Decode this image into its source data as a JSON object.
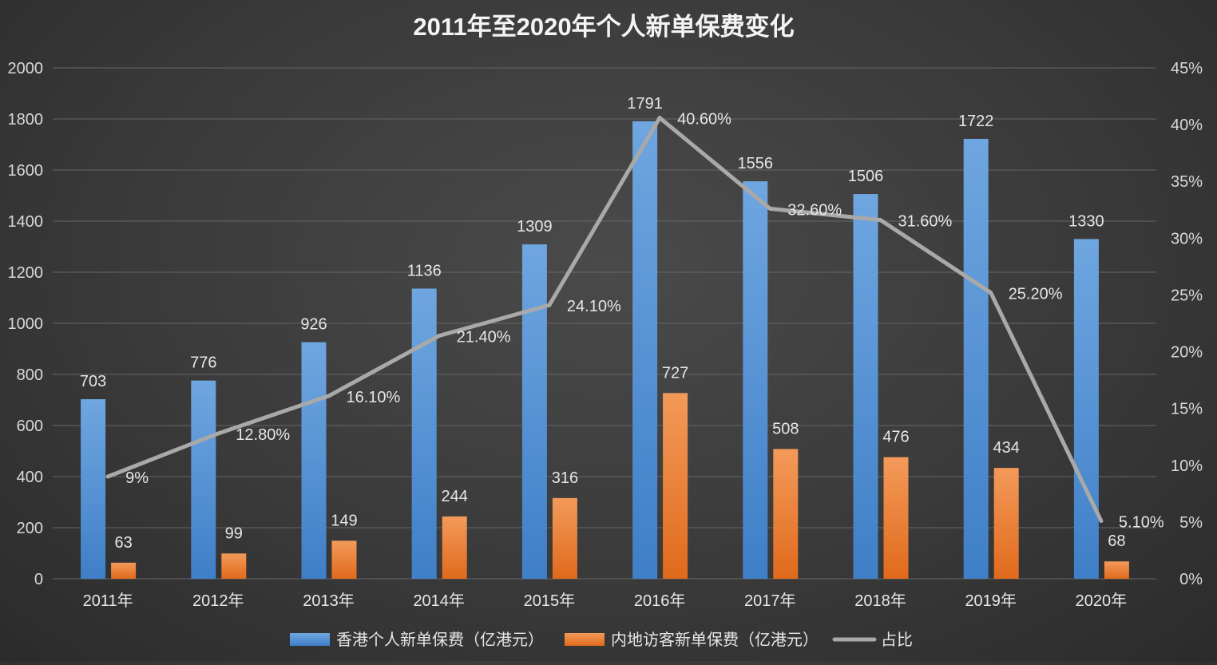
{
  "chart_data": {
    "type": "bar",
    "title": "2011年至2020年个人新单保费变化",
    "categories": [
      "2011年",
      "2012年",
      "2013年",
      "2014年",
      "2015年",
      "2016年",
      "2017年",
      "2018年",
      "2019年",
      "2020年"
    ],
    "series": [
      {
        "name": "香港个人新单保费（亿港元）",
        "type": "bar",
        "axis": "left",
        "color": "#4e8fd1",
        "values": [
          703,
          776,
          926,
          1136,
          1309,
          1791,
          1556,
          1506,
          1722,
          1330
        ],
        "labels": [
          "703",
          "776",
          "926",
          "1136",
          "1309",
          "1791",
          "1556",
          "1506",
          "1722",
          "1330"
        ]
      },
      {
        "name": "内地访客新单保费（亿港元）",
        "type": "bar",
        "axis": "left",
        "color": "#ee7a2c",
        "values": [
          63,
          99,
          149,
          244,
          316,
          727,
          508,
          476,
          434,
          68
        ],
        "labels": [
          "63",
          "99",
          "149",
          "244",
          "316",
          "727",
          "508",
          "476",
          "434",
          "68"
        ]
      },
      {
        "name": "占比",
        "type": "line",
        "axis": "right",
        "color": "#a9a9a9",
        "values": [
          9,
          12.8,
          16.1,
          21.4,
          24.1,
          40.6,
          32.6,
          31.6,
          25.2,
          5.1
        ],
        "labels": [
          "9%",
          "12.80%",
          "16.10%",
          "21.40%",
          "24.10%",
          "40.60%",
          "32.60%",
          "31.60%",
          "25.20%",
          "5.10%"
        ]
      }
    ],
    "ylim": [
      0,
      2000
    ],
    "y_ticks": [
      "0",
      "200",
      "400",
      "600",
      "800",
      "1000",
      "1200",
      "1400",
      "1600",
      "1800",
      "2000"
    ],
    "y2lim": [
      0,
      45
    ],
    "y2_ticks": [
      "0%",
      "5%",
      "10%",
      "15%",
      "20%",
      "25%",
      "30%",
      "35%",
      "40%",
      "45%"
    ],
    "grid": true,
    "legend_position": "bottom"
  }
}
